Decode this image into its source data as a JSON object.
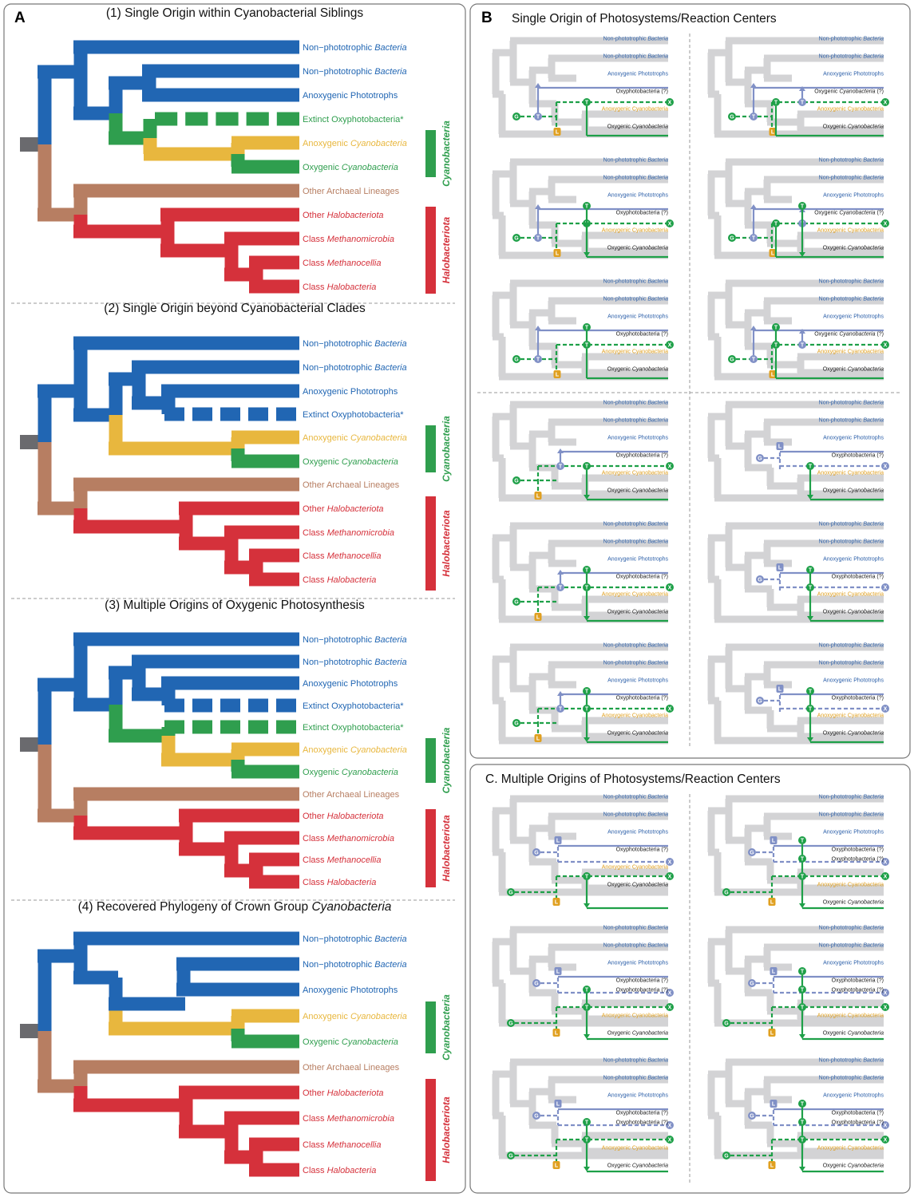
{
  "panels": {
    "A": {
      "letter": "A",
      "scenarios": [
        {
          "title": "(1) Single Origin within Cyanobacterial Siblings",
          "labels": [
            {
              "pre": "Non−phototrophic ",
              "it": "Bacteria",
              "post": "",
              "color": "blue"
            },
            {
              "pre": "Non−phototrophic ",
              "it": "Bacteria",
              "post": "",
              "color": "blue"
            },
            {
              "pre": "Anoxygenic Phototrophs",
              "it": "",
              "post": "",
              "color": "blue"
            },
            {
              "pre": "Extinct Oxyphotobacteria*",
              "it": "",
              "post": "",
              "color": "green"
            },
            {
              "pre": "Anoxygenic ",
              "it": "Cyanobacteria",
              "post": "",
              "color": "yellow"
            },
            {
              "pre": "Oxygenic ",
              "it": "Cyanobacteria",
              "post": "",
              "color": "green"
            },
            {
              "pre": "Other Archaeal Lineages",
              "it": "",
              "post": "",
              "color": "brown"
            },
            {
              "pre": "Other ",
              "it": "Halobacteriota",
              "post": "",
              "color": "red"
            },
            {
              "pre": "Class ",
              "it": "Methanomicrobia",
              "post": "",
              "color": "red"
            },
            {
              "pre": "Class ",
              "it": "Methanocellia",
              "post": "",
              "color": "red"
            },
            {
              "pre": "Class ",
              "it": "Halobacteria",
              "post": "",
              "color": "red"
            }
          ],
          "groups": [
            "Cyanobacteria",
            "Halobacteriota"
          ]
        },
        {
          "title": "(2) Single Origin beyond Cyanobacterial Clades",
          "labels": [
            {
              "pre": "Non−phototrophic ",
              "it": "Bacteria",
              "post": "",
              "color": "blue"
            },
            {
              "pre": "Non−phototrophic ",
              "it": "Bacteria",
              "post": "",
              "color": "blue"
            },
            {
              "pre": "Anoxygenic Phototrophs",
              "it": "",
              "post": "",
              "color": "blue"
            },
            {
              "pre": "Extinct Oxyphotobacteria*",
              "it": "",
              "post": "",
              "color": "blue"
            },
            {
              "pre": "Anoxygenic ",
              "it": "Cyanobacteria",
              "post": "",
              "color": "yellow"
            },
            {
              "pre": "Oxygenic ",
              "it": "Cyanobacteria",
              "post": "",
              "color": "green"
            },
            {
              "pre": "Other Archaeal Lineages",
              "it": "",
              "post": "",
              "color": "brown"
            },
            {
              "pre": "Other ",
              "it": "Halobacteriota",
              "post": "",
              "color": "red"
            },
            {
              "pre": "Class ",
              "it": "Methanomicrobia",
              "post": "",
              "color": "red"
            },
            {
              "pre": "Class ",
              "it": "Methanocellia",
              "post": "",
              "color": "red"
            },
            {
              "pre": "Class ",
              "it": "Halobacteria",
              "post": "",
              "color": "red"
            }
          ],
          "groups": [
            "Cyanobacteria",
            "Halobacteriota"
          ]
        },
        {
          "title": "(3) Multiple Origins of Oxygenic Photosynthesis",
          "labels": [
            {
              "pre": "Non−phototrophic ",
              "it": "Bacteria",
              "post": "",
              "color": "blue"
            },
            {
              "pre": "Non−phototrophic ",
              "it": "Bacteria",
              "post": "",
              "color": "blue"
            },
            {
              "pre": "Anoxygenic Phototrophs",
              "it": "",
              "post": "",
              "color": "blue"
            },
            {
              "pre": "Extinct Oxyphotobacteria*",
              "it": "",
              "post": "",
              "color": "blue"
            },
            {
              "pre": "Extinct Oxyphotobacteria*",
              "it": "",
              "post": "",
              "color": "green"
            },
            {
              "pre": "Anoxygenic ",
              "it": "Cyanobacteria",
              "post": "",
              "color": "yellow"
            },
            {
              "pre": "Oxygenic ",
              "it": "Cyanobacteria",
              "post": "",
              "color": "green"
            },
            {
              "pre": "Other Archaeal Lineages",
              "it": "",
              "post": "",
              "color": "brown"
            },
            {
              "pre": "Other ",
              "it": "Halobacteriota",
              "post": "",
              "color": "red"
            },
            {
              "pre": "Class ",
              "it": "Methanomicrobia",
              "post": "",
              "color": "red"
            },
            {
              "pre": "Class ",
              "it": "Methanocellia",
              "post": "",
              "color": "red"
            },
            {
              "pre": "Class ",
              "it": "Halobacteria",
              "post": "",
              "color": "red"
            }
          ],
          "groups": [
            "Cyanobacteria",
            "Halobacteriota"
          ]
        },
        {
          "title_pre": "(4) Recovered Phylogeny of Crown Group ",
          "title_it": "Cyanobacteria",
          "labels": [
            {
              "pre": "Non−phototrophic ",
              "it": "Bacteria",
              "post": "",
              "color": "blue"
            },
            {
              "pre": "Non−phototrophic ",
              "it": "Bacteria",
              "post": "",
              "color": "blue"
            },
            {
              "pre": "Anoxygenic Phototrophs",
              "it": "",
              "post": "",
              "color": "blue"
            },
            {
              "pre": "Anoxygenic ",
              "it": "Cyanobacteria",
              "post": "",
              "color": "yellow"
            },
            {
              "pre": "Oxygenic ",
              "it": "Cyanobacteria",
              "post": "",
              "color": "green"
            },
            {
              "pre": "Other Archaeal Lineages",
              "it": "",
              "post": "",
              "color": "brown"
            },
            {
              "pre": "Other ",
              "it": "Halobacteriota",
              "post": "",
              "color": "red"
            },
            {
              "pre": "Class ",
              "it": "Methanomicrobia",
              "post": "",
              "color": "red"
            },
            {
              "pre": "Class ",
              "it": "Methanocellia",
              "post": "",
              "color": "red"
            },
            {
              "pre": "Class ",
              "it": "Halobacteria",
              "post": "",
              "color": "red"
            }
          ],
          "groups": [
            "Cyanobacteria",
            "Halobacteriota"
          ]
        }
      ]
    },
    "B": {
      "letter": "B",
      "title": "Single Origin of Photosystems/Reaction Centers",
      "labels_single": [
        {
          "pre": "Non-phototrophic ",
          "it": "Bacteria",
          "color": "blue"
        },
        {
          "pre": "Non-phototrophic ",
          "it": "Bacteria",
          "color": "blue"
        },
        {
          "pre": "Anoxygenic Phototrophs",
          "it": "",
          "color": "blue"
        },
        {
          "pre": "Oxyphotobacteria (?)",
          "it": "",
          "color": "dark"
        },
        {
          "pre": "Anoxygenic Cyanobacteria",
          "it": "",
          "color": "yellow"
        },
        {
          "pre": "Oxygenic ",
          "it": "Cyanobacteria",
          "color": "dark"
        }
      ],
      "labels_right_top": [
        {
          "pre": "Non-phototrophic ",
          "it": "Bacteria",
          "color": "blue"
        },
        {
          "pre": "Non-phototrophic ",
          "it": "Bacteria",
          "color": "blue"
        },
        {
          "pre": "Anoxygenic Phototrophs",
          "it": "",
          "color": "blue"
        },
        {
          "pre": "Oxygenic ",
          "it": "Cyanobacteria",
          "post": " (?)",
          "color": "dark"
        },
        {
          "pre": "Anoxygenic Cyanobacteria",
          "it": "",
          "color": "yellow"
        },
        {
          "pre": "Oxygenic ",
          "it": "Cyanobacteria",
          "color": "dark"
        }
      ]
    },
    "C": {
      "title": "C. Multiple Origins of Photosystems/Reaction Centers",
      "labels_6": [
        {
          "pre": "Non-phototrophic ",
          "it": "Bacteria",
          "color": "blue"
        },
        {
          "pre": "Non-phototrophic ",
          "it": "Bacteria",
          "color": "blue"
        },
        {
          "pre": "Anoxygenic Phototrophs",
          "it": "",
          "color": "blue"
        },
        {
          "pre": "Oxyphotobacteria (?)",
          "it": "",
          "color": "dark"
        },
        {
          "pre": "Anoxygenic Cyanobacteria",
          "it": "",
          "color": "yellow"
        },
        {
          "pre": "Oxygenic ",
          "it": "Cyanobacteria",
          "color": "dark"
        }
      ],
      "labels_7": [
        {
          "pre": "Non-phototrophic ",
          "it": "Bacteria",
          "color": "blue"
        },
        {
          "pre": "Non-phototrophic ",
          "it": "Bacteria",
          "color": "blue"
        },
        {
          "pre": "Anoxygenic Phototrophs",
          "it": "",
          "color": "blue"
        },
        {
          "pre": "Oxyphotobacteria (?)",
          "it": "",
          "color": "dark"
        },
        {
          "pre": "Oxyphotobacteria (?)",
          "it": "",
          "color": "dark"
        },
        {
          "pre": "Anoxygenic Cyanobacteria",
          "it": "",
          "color": "yellow"
        },
        {
          "pre": "Oxygenic ",
          "it": "Cyanobacteria",
          "color": "dark"
        }
      ]
    }
  },
  "markers": {
    "G": "G",
    "T": "T",
    "L": "L",
    "X": "X"
  },
  "colors": {
    "blue": "#2166b3",
    "green": "#2f9e4e",
    "yellow": "#e8b73e",
    "brown": "#b77e62",
    "red": "#d5313b",
    "grey": "#6a6a6e",
    "tree_grey": "#d3d3d5",
    "lav": "#8090c6",
    "sgreen": "#1ea048",
    "dark": "#1a1a1a",
    "lblue": "#2a5ea8",
    "lyellow": "#e0a020"
  }
}
